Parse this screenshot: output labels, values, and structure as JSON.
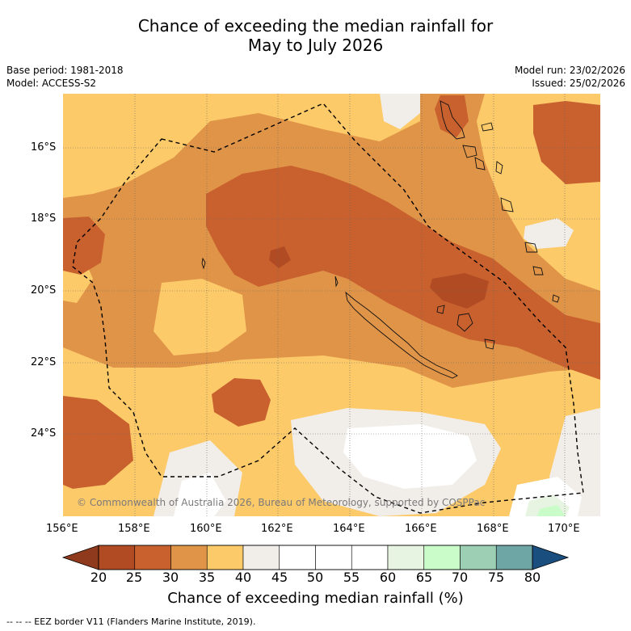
{
  "title": {
    "line1": "Chance of exceeding the median rainfall for",
    "line2": "May to July 2026"
  },
  "info_left": {
    "base_period": "Base period: 1981-2018",
    "model": "Model: ACCESS-S2"
  },
  "info_right": {
    "model_run": "Model run: 23/02/2026",
    "issued": "Issued: 25/02/2026"
  },
  "map": {
    "lat_labels": [
      "16°S",
      "18°S",
      "20°S",
      "22°S",
      "24°S"
    ],
    "lon_labels": [
      "156°E",
      "158°E",
      "160°E",
      "162°E",
      "164°E",
      "166°E",
      "168°E",
      "170°E"
    ],
    "copyright": "© Commonwealth of Australia 2026, Bureau of Meteorology, supported by COSPPac"
  },
  "colorbar": {
    "ticks": [
      "20",
      "25",
      "30",
      "35",
      "40",
      "45",
      "50",
      "55",
      "60",
      "65",
      "70",
      "75",
      "80"
    ],
    "colors": [
      "#b14b24",
      "#c9612f",
      "#e09448",
      "#fdca6a",
      "#f1ede9",
      "#ffffff",
      "#ffffff",
      "#ffffff",
      "#e7f4e2",
      "#c9fcc9",
      "#9ccfb3",
      "#6ea6a5",
      "#3f7593"
    ],
    "low_color": "#8f3a1c",
    "high_color": "#1a4e7e",
    "title": "Chance of exceeding median rainfall (%)"
  },
  "legend": {
    "text": "--  --  -- EEZ border V11 (Flanders Marine Institute, 2019)."
  }
}
